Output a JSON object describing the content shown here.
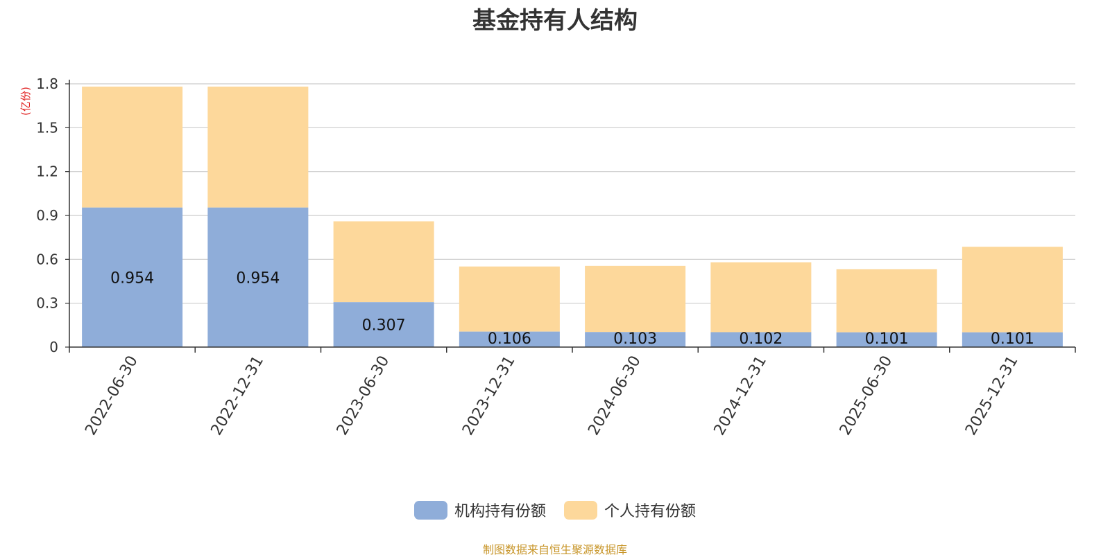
{
  "chart_data": {
    "type": "bar",
    "stacked": true,
    "title": "基金持有人结构",
    "unit_label": "(亿份)",
    "categories": [
      "2022-06-30",
      "2022-12-31",
      "2023-06-30",
      "2023-12-31",
      "2024-06-30",
      "2024-12-31",
      "2025-06-30",
      "2025-12-31"
    ],
    "series": [
      {
        "name": "机构持有份额",
        "color": "#8fadd9",
        "values": [
          0.954,
          0.954,
          0.307,
          0.106,
          0.103,
          0.102,
          0.101,
          0.101
        ],
        "labels": [
          "0.954",
          "0.954",
          "0.307",
          "0.106",
          "0.103",
          "0.102",
          "0.101",
          "0.101"
        ]
      },
      {
        "name": "个人持有份额",
        "color": "#fdd89b",
        "values": [
          0.827,
          0.827,
          0.553,
          0.445,
          0.452,
          0.478,
          0.432,
          0.585
        ]
      }
    ],
    "y_ticks": [
      "0",
      "0.3",
      "0.6",
      "0.9",
      "1.2",
      "1.5",
      "1.8"
    ],
    "ylim": [
      0,
      1.8
    ],
    "grid": true,
    "legend_position": "bottom"
  },
  "source_note": "制图数据来自恒生聚源数据库"
}
